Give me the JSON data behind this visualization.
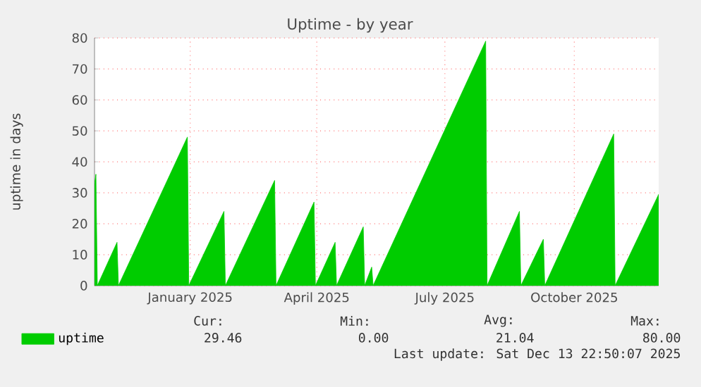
{
  "chart_data": {
    "type": "area",
    "title": "Uptime - by year",
    "ylabel": "uptime in days",
    "x": [
      "2024-11-08",
      "2024-11-09",
      "2024-11-10",
      "2024-11-24",
      "2024-11-25",
      "2025-01-13",
      "2025-01-14",
      "2025-02-08",
      "2025-02-09",
      "2025-03-16",
      "2025-03-17",
      "2025-04-13",
      "2025-04-14",
      "2025-04-28",
      "2025-04-29",
      "2025-05-18",
      "2025-05-19",
      "2025-05-24",
      "2025-05-25",
      "2025-08-13",
      "2025-08-14",
      "2025-09-06",
      "2025-09-07",
      "2025-09-23",
      "2025-09-24",
      "2025-11-12",
      "2025-11-13",
      "2025-12-13T22:50"
    ],
    "series": [
      {
        "name": "uptime",
        "color": "#00cc00",
        "values": [
          33,
          36,
          0,
          14,
          0,
          48,
          0,
          24,
          0,
          34,
          0,
          27,
          0,
          14,
          0,
          19,
          0,
          6,
          0,
          79,
          0,
          24,
          0,
          15,
          0,
          49,
          0,
          29.5
        ]
      }
    ],
    "xlim": [
      "2024-11-08",
      "2025-12-13T22:50"
    ],
    "xticks": [
      {
        "value": "2025-01-15",
        "label": "January 2025"
      },
      {
        "value": "2025-04-15",
        "label": "April 2025"
      },
      {
        "value": "2025-07-15",
        "label": "July 2025"
      },
      {
        "value": "2025-10-15",
        "label": "October 2025"
      }
    ],
    "ylim": [
      0,
      80
    ],
    "yticks": [
      0,
      10,
      20,
      30,
      40,
      50,
      60,
      70,
      80
    ],
    "grid": true,
    "legend": "bottom",
    "annotations": [
      "Cur:",
      "Min:",
      "Avg:",
      "Max:",
      "29.46",
      "0.00",
      "21.04",
      "80.00",
      "Last update: Sat Dec 13 22:50:07 2025"
    ]
  }
}
